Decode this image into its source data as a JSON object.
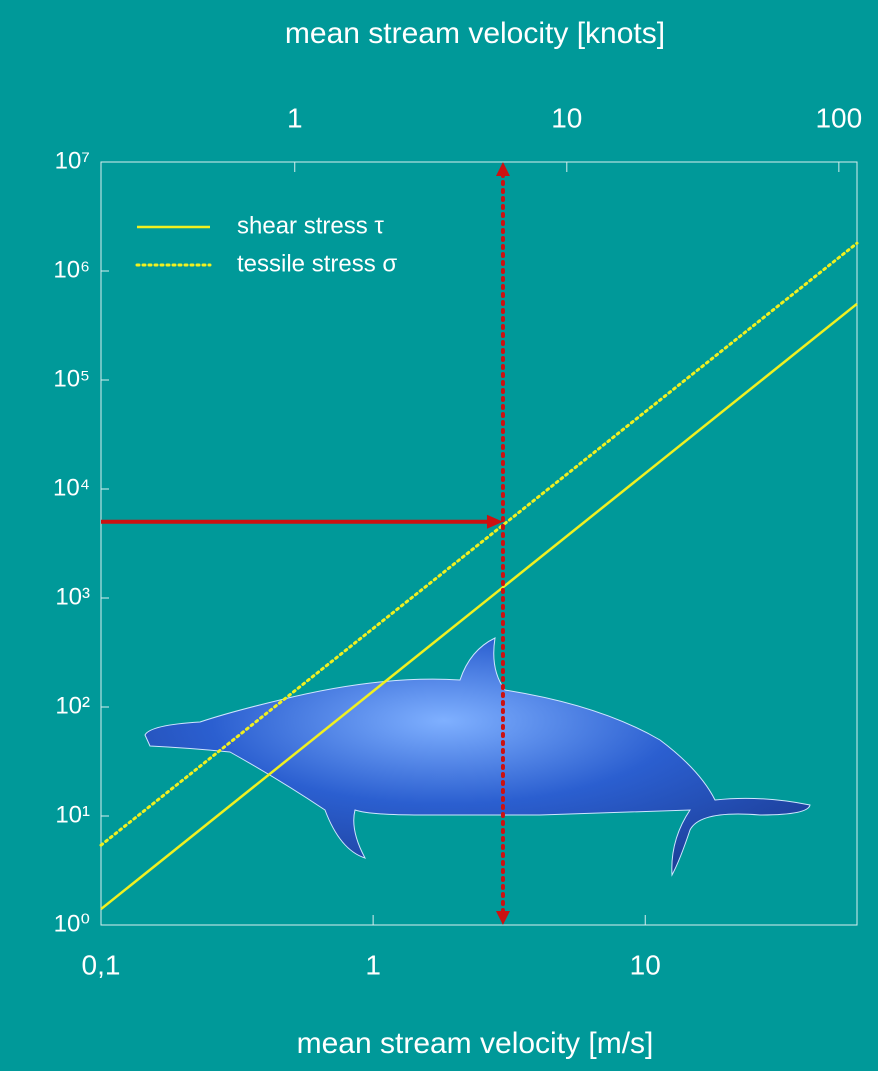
{
  "chart_data": {
    "type": "line",
    "title": "mean stream velocity [knots]",
    "x_label": "mean stream velocity [m/s]",
    "log_x": true,
    "log_y": true,
    "xlim": [
      0.1,
      60
    ],
    "xticks": [
      {
        "value": 0.1,
        "label": "0,1"
      },
      1,
      10
    ],
    "x2lim": [
      0.194,
      116.6
    ],
    "x2ticks": [
      1,
      10,
      100
    ],
    "ylim": [
      1,
      10000000
    ],
    "yticks": [
      {
        "value": 1,
        "label": "10⁰"
      },
      {
        "value": 10,
        "label": "10¹"
      },
      {
        "value": 100,
        "label": "10²"
      },
      {
        "value": 1000,
        "label": "10³"
      },
      {
        "value": 10000,
        "label": "10⁴"
      },
      {
        "value": 100000,
        "label": "10⁵"
      },
      {
        "value": 1000000,
        "label": "10⁶"
      },
      {
        "value": 10000000,
        "label": "10⁷"
      }
    ],
    "series": [
      {
        "name": "shear stress τ",
        "color": "#f0f020",
        "style": "solid",
        "x": [
          0.1,
          60
        ],
        "values": [
          1.4,
          500000
        ]
      },
      {
        "name": "tessile stress σ",
        "color": "#f0f020",
        "style": "dotted",
        "x": [
          0.1,
          60
        ],
        "values": [
          5.4,
          1800000
        ]
      }
    ],
    "marker": {
      "x": 3,
      "y": 5000,
      "color": "#cc1111"
    }
  }
}
